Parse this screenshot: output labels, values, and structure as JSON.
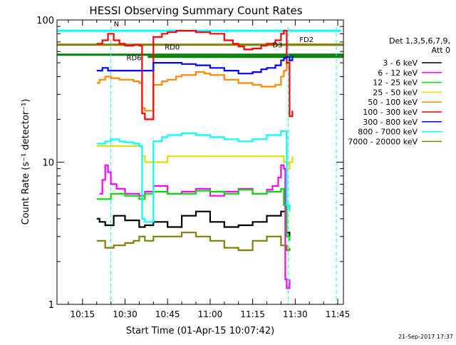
{
  "chart_data": {
    "type": "line",
    "title": "HESSI Observing Summary Count Rates",
    "xlabel": "Start Time (01-Apr-15 10:07:42)",
    "ylabel": "Count Rate (s⁻¹ detector⁻¹)",
    "yscale": "log",
    "ylim": [
      1,
      100
    ],
    "xlim_minutes": [
      606,
      707
    ],
    "x_ticks": [
      {
        "t": 615,
        "label": "10:15"
      },
      {
        "t": 630,
        "label": "10:30"
      },
      {
        "t": 645,
        "label": "10:45"
      },
      {
        "t": 660,
        "label": "11:00"
      },
      {
        "t": 675,
        "label": "11:15"
      },
      {
        "t": 690,
        "label": "11:30"
      },
      {
        "t": 705,
        "label": "11:45"
      }
    ],
    "y_ticks": [
      {
        "v": 1,
        "label": "1"
      },
      {
        "v": 10,
        "label": "10"
      },
      {
        "v": 100,
        "label": "100"
      }
    ],
    "grid": false,
    "legend_position": "right",
    "legend_header": [
      "Det 1,3,5,6,7,9,",
      "Att 0"
    ],
    "series": [
      {
        "name": "3 - 6 keV",
        "color": "#000000",
        "x": [
          620,
          621,
          623,
          626,
          630,
          635,
          637,
          640,
          645,
          650,
          655,
          660,
          665,
          670,
          675,
          680,
          685,
          687,
          688
        ],
        "y": [
          4,
          3.8,
          3.6,
          4.2,
          3.9,
          3.5,
          3.6,
          3.8,
          3.5,
          4.2,
          4.5,
          3.8,
          3.5,
          3.6,
          3.8,
          4.2,
          4.5,
          3.2,
          3
        ]
      },
      {
        "name": "6 - 12 keV",
        "color": "#ff00ff",
        "x": [
          621,
          622,
          623,
          624,
          625,
          627,
          630,
          635,
          637,
          640,
          645,
          650,
          655,
          660,
          665,
          670,
          675,
          680,
          682,
          684,
          685,
          686,
          686.5,
          687,
          688
        ],
        "y": [
          6,
          7.5,
          9.5,
          8.5,
          7,
          6.5,
          6,
          5.8,
          6.2,
          6.8,
          6,
          6.2,
          6.5,
          5.8,
          6.2,
          6.5,
          6,
          6.4,
          6.8,
          7.8,
          9.5,
          9,
          1.5,
          1.3,
          1.5
        ]
      },
      {
        "name": "12 - 25 keV",
        "color": "#00dd00",
        "x": [
          620,
          625,
          630,
          635,
          637,
          640,
          645,
          650,
          655,
          660,
          665,
          670,
          675,
          680,
          685,
          686,
          687,
          688
        ],
        "y": [
          5.5,
          6,
          5.8,
          5.5,
          6,
          6.2,
          6,
          6,
          6.3,
          6.2,
          6,
          6.4,
          6,
          6.2,
          6.5,
          5,
          3,
          2.8
        ]
      },
      {
        "name": "25 - 50 keV",
        "color": "#dddd00",
        "x": [
          620,
          625,
          630,
          635,
          636,
          637,
          640,
          645,
          650,
          655,
          660,
          665,
          670,
          675,
          680,
          685,
          686,
          687,
          688,
          689
        ],
        "y": [
          13,
          13,
          13,
          13,
          11,
          10,
          10,
          11,
          11,
          11,
          11,
          11,
          11,
          11,
          11,
          11,
          10,
          9,
          10,
          11
        ]
      },
      {
        "name": "50 - 100 keV",
        "color": "#ff8800",
        "x": [
          620,
          621,
          623,
          625,
          628,
          630,
          633,
          635,
          636,
          637,
          640,
          643,
          645,
          648,
          650,
          655,
          658,
          660,
          665,
          670,
          675,
          678,
          680,
          683,
          685,
          686,
          687,
          688,
          689
        ],
        "y": [
          36,
          38,
          40,
          39,
          38,
          38,
          37,
          36,
          24,
          23,
          35,
          37,
          38,
          40,
          41,
          43,
          42,
          41,
          38,
          36,
          35,
          34,
          34,
          35,
          40,
          44,
          50,
          52,
          55
        ]
      },
      {
        "name": "100 - 300 keV",
        "color": "#ff0000",
        "x": [
          620,
          622,
          624,
          626,
          628,
          630,
          633,
          635,
          636,
          637,
          640,
          643,
          645,
          648,
          650,
          655,
          660,
          665,
          668,
          670,
          672,
          675,
          678,
          680,
          683,
          685,
          686,
          687,
          688,
          689
        ],
        "y": [
          68,
          72,
          80,
          72,
          68,
          66,
          67,
          66,
          22,
          20,
          76,
          80,
          82,
          84,
          84,
          82,
          80,
          72,
          68,
          65,
          62,
          63,
          66,
          68,
          72,
          80,
          84,
          50,
          21,
          23
        ]
      },
      {
        "name": "300 - 800 keV",
        "color": "#0000ff",
        "x": [
          620,
          622,
          624,
          626,
          628,
          630,
          633,
          635,
          636,
          637,
          640,
          643,
          645,
          648,
          650,
          655,
          660,
          665,
          670,
          675,
          678,
          680,
          683,
          685,
          686,
          687,
          688,
          689
        ],
        "y": [
          44,
          46,
          44,
          44,
          44,
          44,
          44,
          44,
          44,
          44,
          50,
          50,
          50,
          50,
          49,
          48,
          46,
          44,
          42,
          43,
          45,
          46,
          48,
          52,
          54,
          55,
          52,
          56
        ]
      },
      {
        "name": "800 - 7000 keV",
        "color": "#00ffff",
        "x": [
          620,
          623,
          625,
          628,
          630,
          633,
          635,
          636,
          637,
          640,
          643,
          645,
          650,
          655,
          660,
          665,
          670,
          675,
          680,
          685,
          687,
          688
        ],
        "y": [
          13.5,
          14,
          14.5,
          14,
          13.8,
          13.5,
          13,
          4,
          3.8,
          14,
          15,
          15.5,
          16,
          15.5,
          15,
          14.5,
          14,
          14.5,
          15.5,
          16.5,
          5,
          4.5
        ]
      },
      {
        "name": "7000 - 20000 keV",
        "color": "#808000",
        "x": [
          620,
          623,
          626,
          630,
          633,
          635,
          637,
          640,
          645,
          650,
          655,
          660,
          665,
          670,
          675,
          680,
          685,
          687,
          688
        ],
        "y": [
          2.8,
          2.5,
          2.6,
          2.7,
          2.8,
          3,
          2.8,
          3,
          3,
          3.2,
          3,
          2.8,
          2.5,
          2.4,
          2.8,
          3,
          2.6,
          2.4,
          2.5
        ]
      }
    ],
    "horizontal_levels": [
      {
        "name": "N",
        "y": 84,
        "color": "#00ffff",
        "x_start": 606,
        "x_end": 706
      },
      {
        "name": "FD2",
        "y": 67,
        "color": "#808000",
        "x_start": 606,
        "x_end": 707
      },
      {
        "name": "RD6",
        "y": 57,
        "color": "#008000",
        "x_start": 606,
        "x_end": 707
      },
      {
        "name": "RD0",
        "y": 55,
        "color": "#008000",
        "x_start": 638,
        "x_end": 707
      },
      {
        "name": "D3",
        "y": 67,
        "color": "#808000",
        "x_start": 670,
        "x_end": 707
      }
    ],
    "vertical_markers": [
      {
        "t": 625,
        "color": "#00ffff"
      },
      {
        "t": 687.5,
        "color": "#00ffff"
      },
      {
        "t": 704.5,
        "color": "#00ffff"
      }
    ],
    "annotations": [
      {
        "text": "N",
        "color": "#00ffff"
      },
      {
        "text": "RD6",
        "color": "#008000"
      },
      {
        "text": "RD0",
        "color": "#008000"
      },
      {
        "text": "D3",
        "color": "#808000"
      },
      {
        "text": "FD2",
        "color": "#808000"
      }
    ],
    "footer_date": "21-Sep-2017 17:37"
  }
}
